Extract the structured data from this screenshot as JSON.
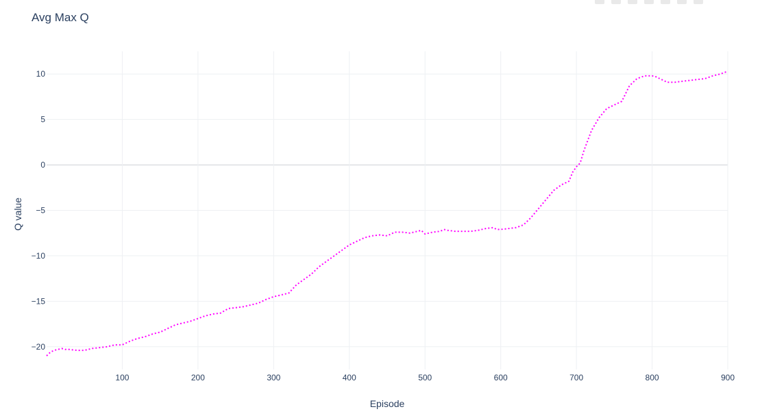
{
  "chart_data": {
    "type": "line",
    "title": "Avg Max Q",
    "xlabel": "Episode",
    "ylabel": "Q value",
    "xlim": [
      0,
      900
    ],
    "ylim": [
      -22.5,
      12.5
    ],
    "xticks": [
      100,
      200,
      300,
      400,
      500,
      600,
      700,
      800,
      900
    ],
    "yticks": [
      -20,
      -15,
      -10,
      -5,
      0,
      5,
      10
    ],
    "grid": true,
    "line_style": "dotted",
    "color": "#ff00ff",
    "series": [
      {
        "x": [
          0,
          5,
          10,
          15,
          20,
          25,
          30,
          40,
          50,
          60,
          70,
          80,
          90,
          100,
          110,
          120,
          130,
          140,
          150,
          160,
          170,
          180,
          190,
          200,
          210,
          220,
          230,
          240,
          250,
          260,
          270,
          280,
          290,
          300,
          310,
          320,
          330,
          340,
          350,
          360,
          370,
          380,
          390,
          400,
          410,
          420,
          430,
          440,
          450,
          460,
          470,
          480,
          490,
          495,
          500,
          510,
          520,
          525,
          530,
          540,
          550,
          560,
          570,
          580,
          590,
          595,
          600,
          610,
          620,
          630,
          640,
          650,
          660,
          670,
          680,
          690,
          695,
          700,
          705,
          710,
          720,
          730,
          740,
          750,
          760,
          770,
          780,
          790,
          800,
          805,
          810,
          820,
          830,
          840,
          850,
          860,
          870,
          880,
          890,
          900
        ],
        "y": [
          -21,
          -20.6,
          -20.4,
          -20.3,
          -20.2,
          -20.3,
          -20.3,
          -20.4,
          -20.4,
          -20.2,
          -20.1,
          -20.0,
          -19.8,
          -19.8,
          -19.4,
          -19.1,
          -18.9,
          -18.6,
          -18.4,
          -18.0,
          -17.6,
          -17.4,
          -17.2,
          -16.9,
          -16.6,
          -16.4,
          -16.3,
          -15.8,
          -15.7,
          -15.6,
          -15.4,
          -15.2,
          -14.8,
          -14.5,
          -14.3,
          -14.1,
          -13.2,
          -12.6,
          -12.0,
          -11.2,
          -10.6,
          -10.0,
          -9.4,
          -8.8,
          -8.4,
          -8.0,
          -7.8,
          -7.7,
          -7.8,
          -7.4,
          -7.4,
          -7.5,
          -7.3,
          -7.2,
          -7.6,
          -7.4,
          -7.3,
          -7.1,
          -7.2,
          -7.3,
          -7.3,
          -7.3,
          -7.2,
          -7.0,
          -6.9,
          -7.1,
          -7.1,
          -7.0,
          -6.9,
          -6.6,
          -5.8,
          -4.8,
          -3.8,
          -2.8,
          -2.2,
          -1.8,
          -0.8,
          -0.2,
          0.2,
          1.6,
          3.8,
          5.2,
          6.2,
          6.6,
          7.0,
          8.7,
          9.5,
          9.8,
          9.8,
          9.7,
          9.5,
          9.1,
          9.1,
          9.2,
          9.3,
          9.4,
          9.5,
          9.8,
          10.0,
          10.3
        ]
      }
    ]
  }
}
